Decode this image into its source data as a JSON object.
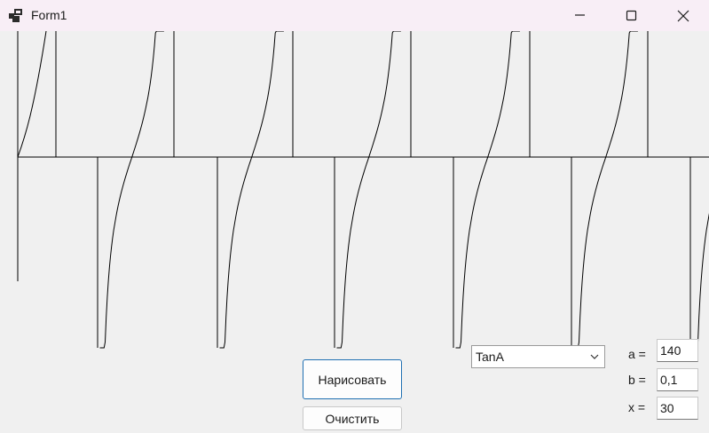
{
  "window": {
    "title": "Form1"
  },
  "titlebar_buttons": {
    "minimize": "minimize-icon",
    "maximize": "maximize-icon",
    "close": "close-icon"
  },
  "plot": {
    "function": "tangent",
    "stroke_color": "#000000",
    "background": "#f0f0f0"
  },
  "buttons": {
    "draw_label": "Нарисовать",
    "clear_label": "Очистить"
  },
  "function_select": {
    "selected": "TanA"
  },
  "params": [
    {
      "label": "a =",
      "value": "140"
    },
    {
      "label": "b =",
      "value": "0,1"
    },
    {
      "label": "x =",
      "value": "30"
    }
  ]
}
